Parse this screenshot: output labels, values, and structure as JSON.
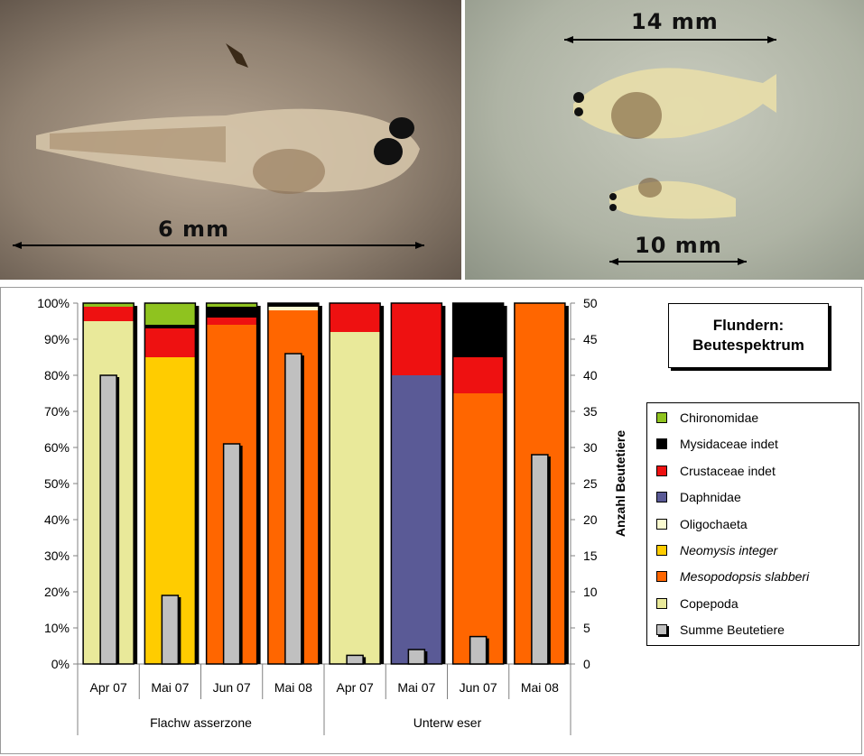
{
  "photos": {
    "left": {
      "scale_label": "6 mm"
    },
    "right": {
      "scale_label_top": "14 mm",
      "scale_label_bottom": "10 mm"
    }
  },
  "chart_title": {
    "line1": "Flundern:",
    "line2": "Beutespektrum"
  },
  "colors": {
    "Chironomidae": "#8fc31f",
    "Mysidaceae indet": "#000000",
    "Crustaceae indet": "#ee1111",
    "Daphnidae": "#5a5a96",
    "Oligochaeta": "#fbfbd0",
    "Neomysis integer": "#ffcc00",
    "Mesopodopsis slabberi": "#ff6600",
    "Copepoda": "#e9e99a",
    "Summe Beutetiere": "#c0c0c0"
  },
  "chart_data": {
    "type": "bar",
    "stacked": true,
    "categories": [
      "Apr 07",
      "Mai 07",
      "Jun 07",
      "Mai 08",
      "Apr 07",
      "Mai 07",
      "Jun 07",
      "Mai 08"
    ],
    "groups": [
      {
        "name": "Flachw asserzone",
        "categories": [
          0,
          1,
          2,
          3
        ]
      },
      {
        "name": "Unterw eser",
        "categories": [
          4,
          5,
          6,
          7
        ]
      }
    ],
    "y_left": {
      "range": [
        0,
        100
      ],
      "unit": "%",
      "ticks": [
        "0%",
        "10%",
        "20%",
        "30%",
        "40%",
        "50%",
        "60%",
        "70%",
        "80%",
        "90%",
        "100%"
      ]
    },
    "y_right": {
      "label": "Anzahl Beutetiere",
      "range": [
        0,
        50
      ],
      "ticks": [
        "0",
        "5",
        "10",
        "15",
        "20",
        "25",
        "30",
        "35",
        "40",
        "45",
        "50"
      ]
    },
    "legend": [
      {
        "name": "Chironomidae",
        "italic": false
      },
      {
        "name": "Mysidaceae indet",
        "italic": false
      },
      {
        "name": "Crustaceae indet",
        "italic": false
      },
      {
        "name": "Daphnidae",
        "italic": false
      },
      {
        "name": "Oligochaeta",
        "italic": false
      },
      {
        "name": "Neomysis integer",
        "italic": true
      },
      {
        "name": "Mesopodopsis slabberi",
        "italic": true
      },
      {
        "name": "Copepoda",
        "italic": false
      },
      {
        "name": "Summe Beutetiere",
        "italic": false
      }
    ],
    "stack_order": [
      "Copepoda",
      "Mesopodopsis slabberi",
      "Neomysis integer",
      "Oligochaeta",
      "Daphnidae",
      "Crustaceae indet",
      "Mysidaceae indet",
      "Chironomidae"
    ],
    "series": [
      {
        "name": "Copepoda",
        "values": [
          95,
          0,
          0,
          0,
          92,
          0,
          0,
          0
        ]
      },
      {
        "name": "Mesopodopsis slabberi",
        "values": [
          0,
          0,
          94,
          98,
          0,
          0,
          75,
          100
        ]
      },
      {
        "name": "Neomysis integer",
        "values": [
          0,
          85,
          0,
          0,
          0,
          0,
          0,
          0
        ]
      },
      {
        "name": "Oligochaeta",
        "values": [
          0,
          0,
          0,
          1,
          0,
          0,
          0,
          0
        ]
      },
      {
        "name": "Daphnidae",
        "values": [
          0,
          0,
          0,
          0,
          0,
          80,
          0,
          0
        ]
      },
      {
        "name": "Crustaceae indet",
        "values": [
          4,
          8,
          2,
          0,
          8,
          20,
          10,
          0
        ]
      },
      {
        "name": "Mysidaceae indet",
        "values": [
          0,
          1,
          3,
          1,
          0,
          0,
          15,
          0
        ]
      },
      {
        "name": "Chironomidae",
        "values": [
          1,
          6,
          1,
          0,
          0,
          0,
          0,
          0
        ]
      }
    ],
    "summe_beutetiere": [
      40,
      9.5,
      30.5,
      43,
      1.2,
      2,
      3.8,
      29
    ]
  }
}
